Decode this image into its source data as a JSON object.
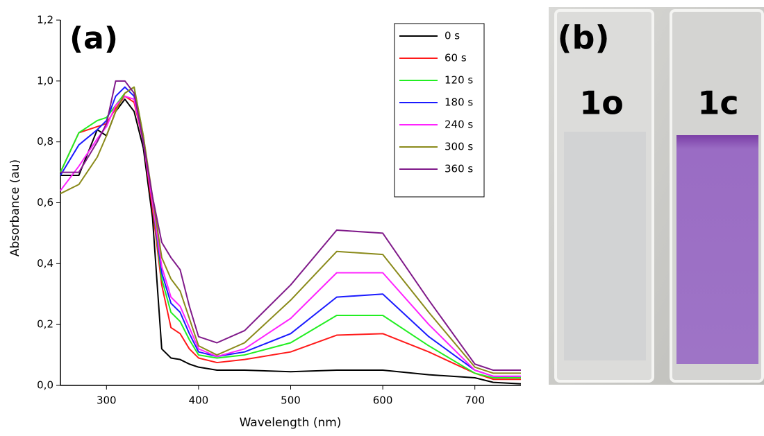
{
  "chart_data": {
    "type": "line",
    "panel_label": "(a)",
    "x_label": "Wavelength (nm)",
    "y_label": "Absorbance (au)",
    "x": [
      250,
      270,
      290,
      300,
      310,
      320,
      330,
      340,
      350,
      360,
      370,
      380,
      390,
      400,
      420,
      450,
      500,
      550,
      600,
      650,
      700,
      720,
      750
    ],
    "series": [
      {
        "name": "0 s",
        "color": "#000000",
        "values": [
          0.69,
          0.69,
          0.84,
          0.82,
          0.9,
          0.94,
          0.9,
          0.78,
          0.55,
          0.12,
          0.09,
          0.085,
          0.07,
          0.06,
          0.05,
          0.05,
          0.045,
          0.05,
          0.05,
          0.035,
          0.025,
          0.01,
          0.005
        ]
      },
      {
        "name": "60 s",
        "color": "#ff1a1a",
        "values": [
          0.7,
          0.83,
          0.85,
          0.86,
          0.91,
          0.95,
          0.93,
          0.8,
          0.58,
          0.33,
          0.19,
          0.17,
          0.12,
          0.09,
          0.075,
          0.085,
          0.11,
          0.165,
          0.17,
          0.11,
          0.04,
          0.02,
          0.02
        ]
      },
      {
        "name": "120 s",
        "color": "#22ee22",
        "values": [
          0.7,
          0.83,
          0.87,
          0.88,
          0.92,
          0.96,
          0.98,
          0.82,
          0.6,
          0.35,
          0.24,
          0.21,
          0.15,
          0.1,
          0.09,
          0.1,
          0.14,
          0.23,
          0.23,
          0.13,
          0.04,
          0.025,
          0.025
        ]
      },
      {
        "name": "180 s",
        "color": "#1a1aff",
        "values": [
          0.69,
          0.79,
          0.84,
          0.87,
          0.95,
          0.98,
          0.95,
          0.8,
          0.6,
          0.37,
          0.27,
          0.24,
          0.17,
          0.11,
          0.095,
          0.11,
          0.17,
          0.29,
          0.3,
          0.16,
          0.05,
          0.03,
          0.03
        ]
      },
      {
        "name": "240 s",
        "color": "#ff22ff",
        "values": [
          0.64,
          0.72,
          0.81,
          0.85,
          0.92,
          0.95,
          0.94,
          0.8,
          0.6,
          0.39,
          0.29,
          0.26,
          0.19,
          0.12,
          0.095,
          0.12,
          0.22,
          0.37,
          0.37,
          0.2,
          0.05,
          0.03,
          0.03
        ]
      },
      {
        "name": "300 s",
        "color": "#8a8a1a",
        "values": [
          0.63,
          0.66,
          0.75,
          0.82,
          0.9,
          0.96,
          0.98,
          0.82,
          0.62,
          0.42,
          0.35,
          0.31,
          0.22,
          0.13,
          0.1,
          0.14,
          0.28,
          0.44,
          0.43,
          0.24,
          0.06,
          0.04,
          0.04
        ]
      },
      {
        "name": "360 s",
        "color": "#801a8a",
        "values": [
          0.7,
          0.7,
          0.8,
          0.86,
          1.0,
          1.0,
          0.96,
          0.8,
          0.62,
          0.47,
          0.42,
          0.38,
          0.26,
          0.16,
          0.14,
          0.18,
          0.33,
          0.51,
          0.5,
          0.28,
          0.07,
          0.05,
          0.05
        ]
      }
    ],
    "xlim": [
      250,
      750
    ],
    "xticks": [
      300,
      400,
      500,
      600,
      700
    ],
    "ylim": [
      0,
      1.2
    ],
    "yticks": [
      {
        "value": 0,
        "label": "0,0"
      },
      {
        "value": 0.2,
        "label": "0,2"
      },
      {
        "value": 0.4,
        "label": "0,4"
      },
      {
        "value": 0.6,
        "label": "0,6"
      },
      {
        "value": 0.8,
        "label": "0,8"
      },
      {
        "value": 1.0,
        "label": "1,0"
      },
      {
        "value": 1.2,
        "label": "1,2"
      }
    ],
    "legend": "upper right"
  },
  "photo": {
    "panel_label": "(b)",
    "cuvettes": [
      "1o",
      "1c"
    ]
  }
}
